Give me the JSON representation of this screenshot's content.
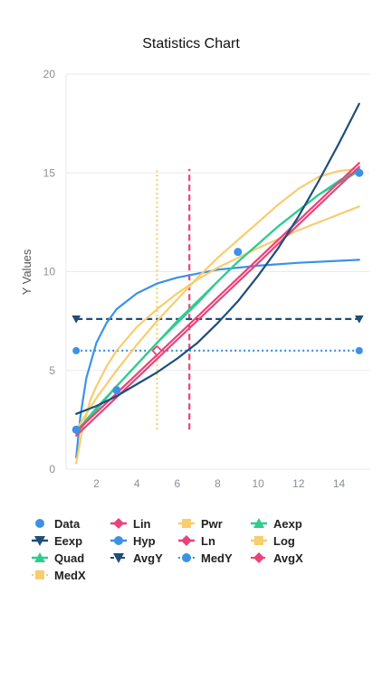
{
  "chart_data": {
    "type": "scatter",
    "title": "Statistics Chart",
    "xlabel": "",
    "ylabel": "Y Values",
    "xlim": [
      0.5,
      15.5
    ],
    "ylim": [
      0,
      20
    ],
    "xticks": [
      2,
      4,
      6,
      8,
      10,
      12,
      14
    ],
    "yticks": [
      0,
      5,
      10,
      15,
      20
    ],
    "grid": true,
    "legend_position": "bottom",
    "series": [
      {
        "name": "Data",
        "kind": "points",
        "color": "#3c91e6",
        "marker": "circle",
        "x": [
          1,
          3,
          5,
          9,
          15
        ],
        "y": [
          2,
          4,
          6,
          11,
          15
        ]
      },
      {
        "name": "Lin",
        "kind": "line",
        "color": "#e8437a",
        "marker": "diamond",
        "dash": "solid",
        "x": [
          1,
          15
        ],
        "y": [
          1.9,
          15.5
        ]
      },
      {
        "name": "Pwr",
        "kind": "line",
        "color": "#f7cd6e",
        "marker": "square",
        "dash": "solid",
        "x": [
          1,
          2,
          3,
          4,
          5,
          6,
          7,
          8,
          9,
          10,
          11,
          12,
          13,
          14,
          15
        ],
        "y": [
          2.0,
          3.6,
          5.0,
          6.3,
          7.5,
          8.6,
          9.7,
          10.7,
          11.6,
          12.5,
          13.4,
          14.2,
          14.8,
          15.1,
          15.2
        ]
      },
      {
        "name": "Aexp",
        "kind": "line",
        "color": "#2ecc8f",
        "marker": "triangle",
        "dash": "solid",
        "x": [
          1,
          2,
          3,
          4,
          5,
          6,
          7,
          8,
          9,
          10,
          11,
          12,
          13,
          14,
          15
        ],
        "y": [
          1.8,
          3.0,
          4.2,
          5.3,
          6.4,
          7.4,
          8.4,
          9.5,
          10.5,
          11.4,
          12.3,
          13.1,
          13.9,
          14.5,
          15.1
        ]
      },
      {
        "name": "Eexp",
        "kind": "line",
        "color": "#1f4e79",
        "marker": "triangle-down",
        "dash": "solid",
        "x": [
          1,
          2,
          3,
          4,
          5,
          6,
          7,
          8,
          9,
          10,
          11,
          12,
          13,
          14,
          15
        ],
        "y": [
          2.8,
          3.2,
          3.7,
          4.3,
          4.9,
          5.6,
          6.4,
          7.4,
          8.5,
          9.8,
          11.2,
          12.8,
          14.6,
          16.5,
          18.5
        ]
      },
      {
        "name": "Hyp",
        "kind": "line",
        "color": "#3c91e6",
        "marker": "circle",
        "dash": "solid",
        "x": [
          1,
          1.2,
          1.5,
          2,
          2.5,
          3,
          4,
          5,
          6,
          8,
          10,
          12,
          15
        ],
        "y": [
          0.6,
          2.6,
          4.6,
          6.4,
          7.4,
          8.1,
          8.9,
          9.4,
          9.7,
          10.1,
          10.3,
          10.45,
          10.6
        ]
      },
      {
        "name": "Ln",
        "kind": "line",
        "color": "#e8437a",
        "marker": "diamond",
        "dash": "solid",
        "x": [
          1,
          15
        ],
        "y": [
          1.7,
          15.3
        ]
      },
      {
        "name": "Log",
        "kind": "line",
        "color": "#f7cd6e",
        "marker": "square",
        "dash": "solid",
        "x": [
          1,
          1.3,
          1.7,
          2,
          2.5,
          3,
          4,
          5,
          6,
          7,
          8,
          10,
          12,
          15
        ],
        "y": [
          0.3,
          2.0,
          3.5,
          4.2,
          5.2,
          6.0,
          7.2,
          8.1,
          8.9,
          9.6,
          10.2,
          11.2,
          12.1,
          13.3
        ]
      },
      {
        "name": "Quad",
        "kind": "line",
        "color": "#2ecc8f",
        "marker": "triangle",
        "dash": "solid",
        "x": [
          1,
          2,
          3,
          4,
          5,
          6,
          7,
          8,
          9,
          10,
          11,
          12,
          13,
          14,
          15
        ],
        "y": [
          1.9,
          3.1,
          4.2,
          5.3,
          6.4,
          7.5,
          8.5,
          9.5,
          10.5,
          11.4,
          12.3,
          13.1,
          13.9,
          14.6,
          15.2
        ]
      },
      {
        "name": "AvgY",
        "kind": "line",
        "color": "#1f4e79",
        "marker": "triangle-down",
        "dash": "dashed",
        "x": [
          1,
          15
        ],
        "y": [
          7.6,
          7.6
        ]
      },
      {
        "name": "MedY",
        "kind": "line",
        "color": "#3c91e6",
        "marker": "circle",
        "dash": "dotted",
        "x": [
          1,
          15
        ],
        "y": [
          6,
          6
        ]
      },
      {
        "name": "AvgX",
        "kind": "line",
        "color": "#e8437a",
        "marker": "diamond",
        "dash": "dashed",
        "x": [
          6.6,
          6.6
        ],
        "y": [
          2,
          15.2
        ]
      },
      {
        "name": "MedX",
        "kind": "line",
        "color": "#f7cd6e",
        "marker": "square",
        "dash": "dotted",
        "x": [
          5,
          5
        ],
        "y": [
          2,
          15.2
        ]
      }
    ]
  }
}
